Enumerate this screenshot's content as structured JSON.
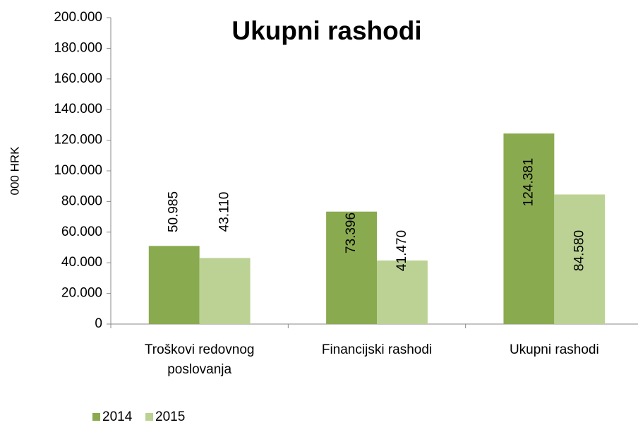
{
  "chart_data": {
    "type": "bar",
    "title": "Ukupni rashodi",
    "y_label": "000 HRK",
    "categories": [
      "Troškovi redovnog poslovanja",
      "Financijski rashodi",
      "Ukupni rashodi"
    ],
    "series": [
      {
        "name": "2014",
        "color": "#8aaa50",
        "values": [
          50985,
          73396,
          124381
        ],
        "value_labels": [
          "50.985",
          "73.396",
          "124.381"
        ]
      },
      {
        "name": "2015",
        "color": "#bcd294",
        "values": [
          43110,
          41470,
          84580
        ],
        "value_labels": [
          "43.110",
          "41.470",
          "84.580"
        ]
      }
    ],
    "ylim": [
      0,
      200000
    ],
    "yticks": [
      {
        "value": 0,
        "label": "0"
      },
      {
        "value": 20000,
        "label": "20.000"
      },
      {
        "value": 40000,
        "label": "40.000"
      },
      {
        "value": 60000,
        "label": "60.000"
      },
      {
        "value": 80000,
        "label": "80.000"
      },
      {
        "value": 100000,
        "label": "100.000"
      },
      {
        "value": 120000,
        "label": "120.000"
      },
      {
        "value": 140000,
        "label": "140.000"
      },
      {
        "value": 160000,
        "label": "160.000"
      },
      {
        "value": 180000,
        "label": "180.000"
      },
      {
        "value": 200000,
        "label": "200.000"
      }
    ],
    "grid": false,
    "legend": "bottom-left"
  }
}
